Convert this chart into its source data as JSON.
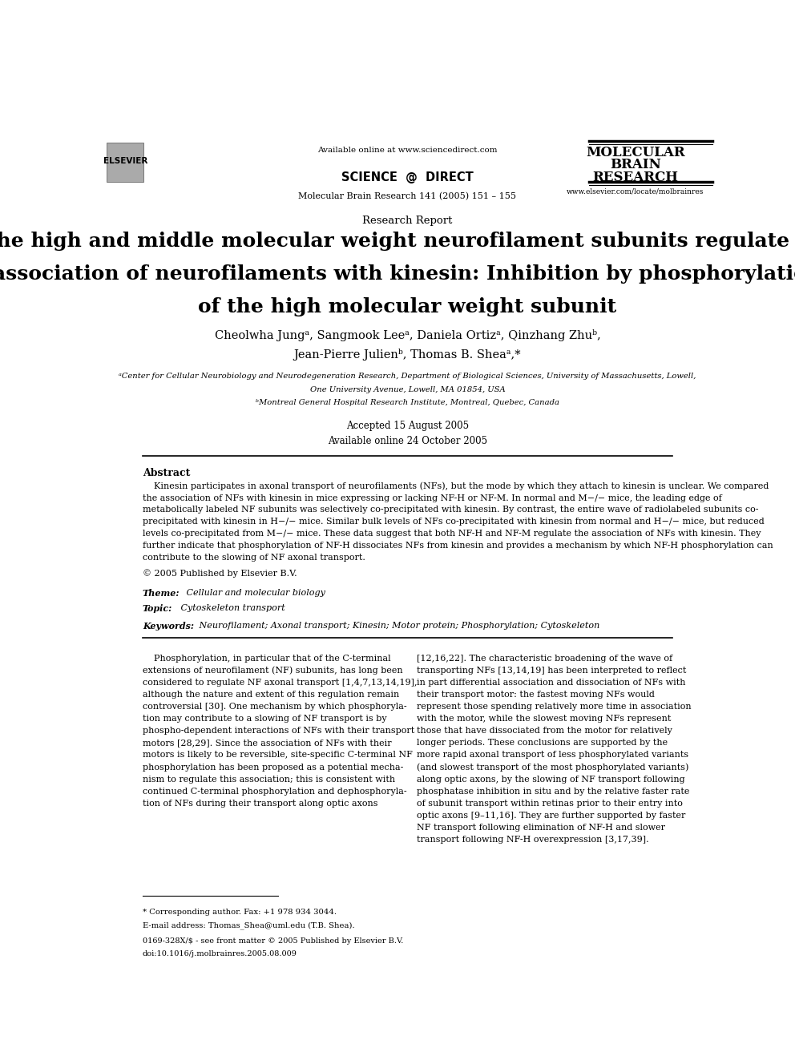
{
  "bg_color": "#ffffff",
  "page_width": 9.92,
  "page_height": 13.23,
  "header": {
    "available_online": "Available online at www.sciencedirect.com",
    "journal_ref": "Molecular Brain Research 141 (2005) 151 – 155",
    "journal_name_line1": "MOLECULAR",
    "journal_name_line2": "BRAIN",
    "journal_name_line3": "RESEARCH",
    "journal_website": "www.elsevier.com/locate/molbrainres"
  },
  "article_type": "Research Report",
  "title_line1": "The high and middle molecular weight neurofilament subunits regulate the",
  "title_line2": "association of neurofilaments with kinesin: Inhibition by phosphorylation",
  "title_line3": "of the high molecular weight subunit",
  "authors_line1": "Cheolwha Jungᵃ, Sangmook Leeᵃ, Daniela Ortizᵃ, Qinzhang Zhuᵇ,",
  "authors_line2": "Jean-Pierre Julienᵇ, Thomas B. Sheaᵃ,*",
  "affil_a": "ᵃCenter for Cellular Neurobiology and Neurodegeneration Research, Department of Biological Sciences, University of Massachusetts, Lowell,",
  "affil_a2": "One University Avenue, Lowell, MA 01854, USA",
  "affil_b": "ᵇMontreal General Hospital Research Institute, Montreal, Quebec, Canada",
  "date1": "Accepted 15 August 2005",
  "date2": "Available online 24 October 2005",
  "abstract_title": "Abstract",
  "abstract_text1": "    Kinesin participates in axonal transport of neurofilaments (NFs), but the mode by which they attach to kinesin is unclear. We compared",
  "abstract_text2": "the association of NFs with kinesin in mice expressing or lacking NF-H or NF-M. In normal and M−/− mice, the leading edge of",
  "abstract_text3": "metabolically labeled NF subunits was selectively co-precipitated with kinesin. By contrast, the entire wave of radiolabeled subunits co-",
  "abstract_text4": "precipitated with kinesin in H−/− mice. Similar bulk levels of NFs co-precipitated with kinesin from normal and H−/− mice, but reduced",
  "abstract_text5": "levels co-precipitated from M−/− mice. These data suggest that both NF-H and NF-M regulate the association of NFs with kinesin. They",
  "abstract_text6": "further indicate that phosphorylation of NF-H dissociates NFs from kinesin and provides a mechanism by which NF-H phosphorylation can",
  "abstract_text7": "contribute to the slowing of NF axonal transport.",
  "abstract_copy": "© 2005 Published by Elsevier B.V.",
  "theme_label": "Theme:",
  "theme_value": " Cellular and molecular biology",
  "topic_label": "Topic:",
  "topic_value": " Cytoskeleton transport",
  "keywords_label": "Keywords:",
  "keywords_value": " Neurofilament; Axonal transport; Kinesin; Motor protein; Phosphorylation; Cytoskeleton",
  "col1_lines": [
    "    Phosphorylation, in particular that of the C-terminal",
    "extensions of neurofilament (NF) subunits, has long been",
    "considered to regulate NF axonal transport [1,4,7,13,14,19],",
    "although the nature and extent of this regulation remain",
    "controversial [30]. One mechanism by which phosphoryla-",
    "tion may contribute to a slowing of NF transport is by",
    "phospho-dependent interactions of NFs with their transport",
    "motors [28,29]. Since the association of NFs with their",
    "motors is likely to be reversible, site-specific C-terminal NF",
    "phosphorylation has been proposed as a potential mecha-",
    "nism to regulate this association; this is consistent with",
    "continued C-terminal phosphorylation and dephosphoryla-",
    "tion of NFs during their transport along optic axons"
  ],
  "col2_lines": [
    "[12,16,22]. The characteristic broadening of the wave of",
    "transporting NFs [13,14,19] has been interpreted to reflect",
    "in part differential association and dissociation of NFs with",
    "their transport motor: the fastest moving NFs would",
    "represent those spending relatively more time in association",
    "with the motor, while the slowest moving NFs represent",
    "those that have dissociated from the motor for relatively",
    "longer periods. These conclusions are supported by the",
    "more rapid axonal transport of less phosphorylated variants",
    "(and slowest transport of the most phosphorylated variants)",
    "along optic axons, by the slowing of NF transport following",
    "phosphatase inhibition in situ and by the relative faster rate",
    "of subunit transport within retinas prior to their entry into",
    "optic axons [9–11,16]. They are further supported by faster",
    "NF transport following elimination of NF-H and slower",
    "transport following NF-H overexpression [3,17,39]."
  ],
  "footnote_star": "* Corresponding author. Fax: +1 978 934 3044.",
  "footnote_email": "E-mail address: Thomas_Shea@uml.edu (T.B. Shea).",
  "footnote_issn1": "0169-328X/$ - see front matter © 2005 Published by Elsevier B.V.",
  "footnote_issn2": "doi:10.1016/j.molbrainres.2005.08.009"
}
